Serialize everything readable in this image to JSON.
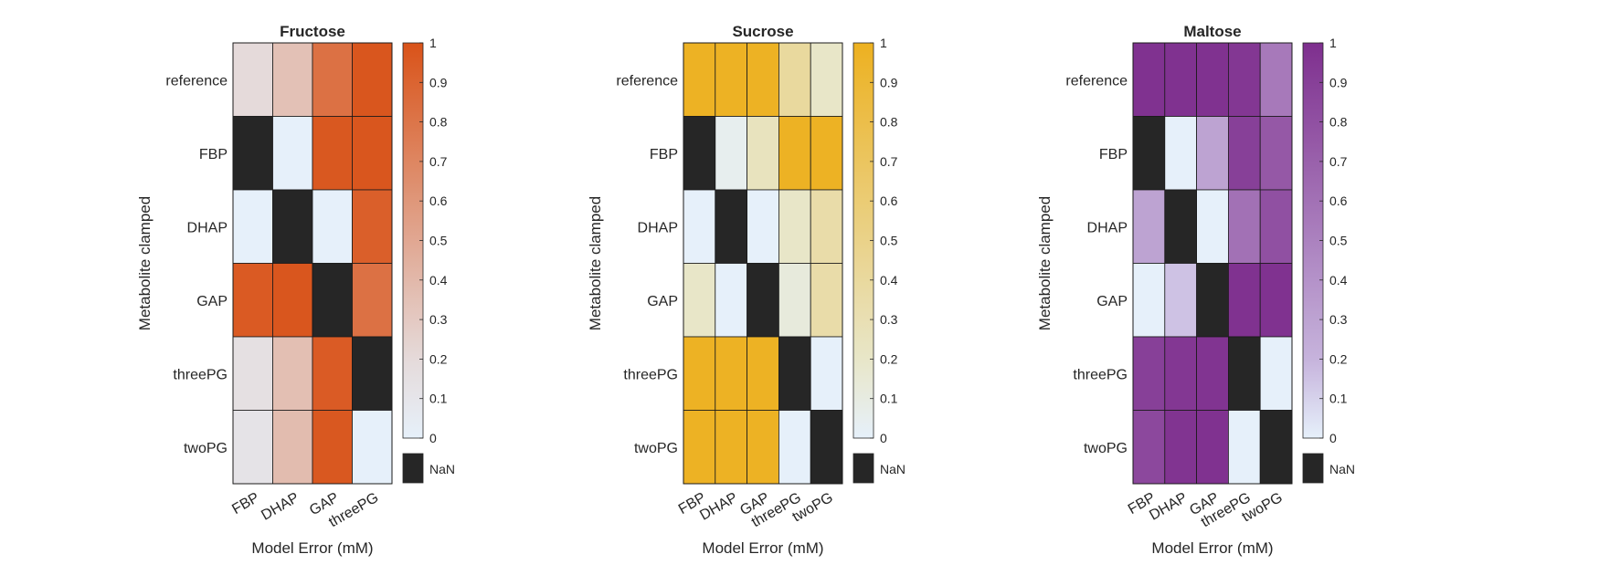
{
  "figure": {
    "background": "#ffffff"
  },
  "chart_data": [
    {
      "type": "heatmap",
      "title": "Fructose",
      "xlabel": "Model Error (mM)",
      "ylabel": "Metabolite clamped",
      "rows": [
        "reference",
        "FBP",
        "DHAP",
        "GAP",
        "threePG",
        "twoPG"
      ],
      "columns": [
        "FBP",
        "DHAP",
        "GAP",
        "threePG"
      ],
      "values": [
        [
          0.2,
          0.35,
          0.82,
          0.98
        ],
        [
          null,
          0.0,
          0.97,
          0.98
        ],
        [
          0.0,
          null,
          0.0,
          0.93
        ],
        [
          0.96,
          0.98,
          null,
          0.82
        ],
        [
          0.15,
          0.36,
          0.95,
          null
        ],
        [
          0.12,
          0.38,
          0.97,
          0.0
        ]
      ],
      "colorscale": {
        "low": "#e6f0fa",
        "mid": "#e5dada",
        "high": "#d95319"
      },
      "colorbar": {
        "range": [
          0,
          1
        ],
        "ticks": [
          "0",
          "0.1",
          "0.2",
          "0.3",
          "0.4",
          "0.5",
          "0.6",
          "0.7",
          "0.8",
          "0.9",
          "1"
        ]
      },
      "nan_label": "NaN",
      "nan_color": "#262626"
    },
    {
      "type": "heatmap",
      "title": "Sucrose",
      "xlabel": "Model Error (mM)",
      "ylabel": "Metabolite clamped",
      "rows": [
        "reference",
        "FBP",
        "DHAP",
        "GAP",
        "threePG",
        "twoPG"
      ],
      "columns": [
        "FBP",
        "DHAP",
        "GAP",
        "threePG",
        "twoPG"
      ],
      "values": [
        [
          0.98,
          0.98,
          0.98,
          0.4,
          0.2
        ],
        [
          null,
          0.05,
          0.25,
          0.98,
          0.98
        ],
        [
          0.0,
          null,
          0.0,
          0.2,
          0.35
        ],
        [
          0.2,
          0.0,
          null,
          0.12,
          0.35
        ],
        [
          0.98,
          0.98,
          0.98,
          null,
          0.0
        ],
        [
          0.98,
          0.98,
          0.98,
          0.0,
          null
        ]
      ],
      "colorscale": {
        "low": "#e6f0fa",
        "mid": "#e8e6c8",
        "high": "#edb120"
      },
      "colorbar": {
        "range": [
          0,
          1
        ],
        "ticks": [
          "0",
          "0.1",
          "0.2",
          "0.3",
          "0.4",
          "0.5",
          "0.6",
          "0.7",
          "0.8",
          "0.9",
          "1"
        ]
      },
      "nan_label": "NaN",
      "nan_color": "#262626"
    },
    {
      "type": "heatmap",
      "title": "Maltose",
      "xlabel": "Model Error (mM)",
      "ylabel": "Metabolite clamped",
      "rows": [
        "reference",
        "FBP",
        "DHAP",
        "GAP",
        "threePG",
        "twoPG"
      ],
      "columns": [
        "FBP",
        "DHAP",
        "GAP",
        "threePG",
        "twoPG"
      ],
      "values": [
        [
          0.98,
          0.98,
          0.98,
          0.95,
          0.55
        ],
        [
          null,
          0.0,
          0.3,
          0.9,
          0.75
        ],
        [
          0.3,
          null,
          0.0,
          0.6,
          0.8
        ],
        [
          0.0,
          0.15,
          null,
          0.98,
          0.98
        ],
        [
          0.9,
          0.95,
          0.97,
          null,
          0.0
        ],
        [
          0.85,
          0.97,
          0.98,
          0.0,
          null
        ]
      ],
      "colorscale": {
        "low": "#e6f0fa",
        "mid": "#c6b3dc",
        "high": "#7e2f8e"
      },
      "colorbar": {
        "range": [
          0,
          1
        ],
        "ticks": [
          "0",
          "0.1",
          "0.2",
          "0.3",
          "0.4",
          "0.5",
          "0.6",
          "0.7",
          "0.8",
          "0.9",
          "1"
        ]
      },
      "nan_label": "NaN",
      "nan_color": "#262626"
    }
  ]
}
